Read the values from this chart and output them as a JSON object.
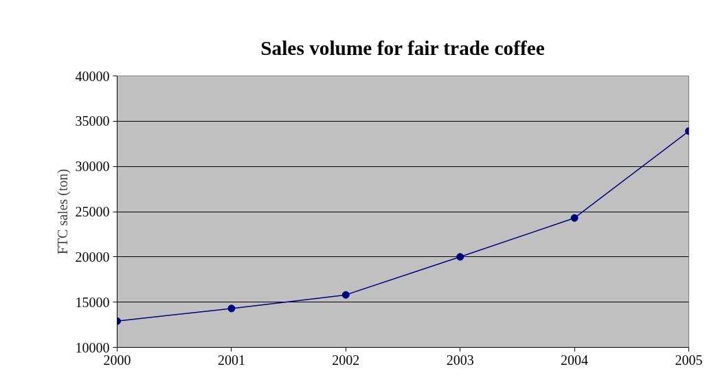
{
  "chart_data": {
    "type": "line",
    "title": "Sales volume for fair trade coffee",
    "ylabel": "FTC sales (ton)",
    "x": [
      2000,
      2001,
      2002,
      2003,
      2004,
      2005
    ],
    "series": [
      {
        "color": "#000080",
        "values": [
          12900,
          14300,
          15800,
          20000,
          24300,
          33900
        ]
      }
    ],
    "xlim": [
      2000,
      2005
    ],
    "xticks": [
      2000,
      2001,
      2002,
      2003,
      2004,
      2005
    ],
    "ylim": [
      10000,
      40000
    ],
    "yticks": [
      10000,
      15000,
      20000,
      25000,
      30000,
      35000,
      40000
    ],
    "grid": "y",
    "marker": "circle",
    "line_style": "solid"
  }
}
